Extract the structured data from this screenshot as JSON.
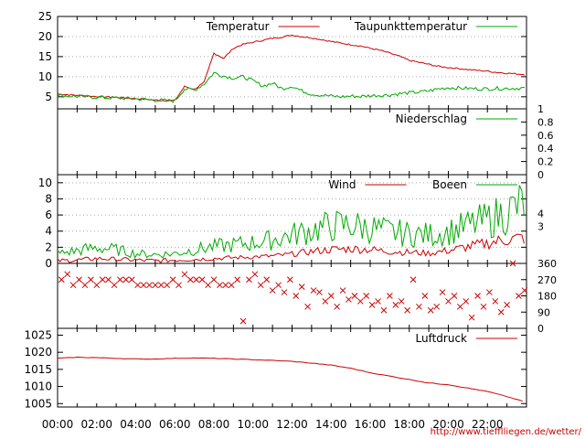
{
  "source_url": "http://www.tiefflliegen.de/wetter/",
  "colors": {
    "red": "#cc0000",
    "green": "#00aa00",
    "frame": "#000000",
    "grid": "#a8a8a8"
  },
  "time_ticks": [
    "00:00",
    "02:00",
    "04:00",
    "06:00",
    "08:00",
    "10:00",
    "12:00",
    "14:00",
    "16:00",
    "18:00",
    "20:00",
    "22:00"
  ],
  "chart_data": [
    {
      "type": "line",
      "panel": "temperature",
      "ylim": [
        2,
        25
      ],
      "yticks": [
        5,
        10,
        15,
        20,
        25
      ],
      "grid": true,
      "legend_position": "top",
      "x": [
        0,
        1,
        2,
        3,
        4,
        5,
        5.5,
        6,
        6.5,
        7,
        7.5,
        8,
        8.5,
        9,
        9.5,
        10,
        10.5,
        11,
        11.5,
        12,
        12.5,
        13,
        13.5,
        14,
        14.5,
        15,
        15.5,
        16,
        16.5,
        17,
        17.5,
        18,
        18.5,
        19,
        19.5,
        20,
        20.5,
        21,
        21.5,
        22,
        22.5,
        23,
        23.9
      ],
      "series": [
        {
          "name": "Temperatur",
          "color": "#cc0000",
          "values": [
            5.6,
            5.3,
            5.0,
            4.8,
            4.5,
            4.1,
            4.0,
            4.0,
            7.5,
            6.8,
            8.5,
            15.8,
            14.5,
            17.0,
            18.0,
            18.5,
            19.0,
            19.5,
            19.8,
            20.3,
            19.9,
            19.6,
            19.2,
            18.7,
            18.3,
            17.9,
            17.6,
            17.0,
            16.5,
            15.8,
            15.0,
            14.0,
            13.5,
            13.0,
            12.5,
            12.2,
            12.0,
            11.7,
            11.5,
            11.3,
            11.0,
            10.8,
            10.5
          ]
        },
        {
          "name": "Taupunkttemperatur",
          "color": "#00aa00",
          "values": [
            5.2,
            4.9,
            4.7,
            4.5,
            4.3,
            4.0,
            3.9,
            3.8,
            6.8,
            6.5,
            8.0,
            10.8,
            10.0,
            9.5,
            9.8,
            8.8,
            7.5,
            8.2,
            6.8,
            7.5,
            6.3,
            5.5,
            5.2,
            5.0,
            4.8,
            5.0,
            4.9,
            5.1,
            5.2,
            5.3,
            5.6,
            5.8,
            6.0,
            6.3,
            6.8,
            7.1,
            7.0,
            6.9,
            6.8,
            6.8,
            6.9,
            6.9,
            7.0
          ]
        }
      ]
    },
    {
      "type": "line",
      "panel": "precipitation",
      "ylim": [
        0,
        1
      ],
      "yticks": [
        0,
        0.2,
        0.4,
        0.6,
        0.8,
        1
      ],
      "legend_position": "top-right",
      "x": [
        0,
        23.9
      ],
      "series": [
        {
          "name": "Niederschlag",
          "color": "#00aa00",
          "values": [
            0,
            0
          ]
        }
      ]
    },
    {
      "type": "line",
      "panel": "wind",
      "ylim": [
        0,
        11
      ],
      "yticks": [
        0,
        2,
        4,
        6,
        8,
        10
      ],
      "y2ticks": [
        3,
        4
      ],
      "grid": true,
      "legend_position": "top",
      "x": [
        0,
        1,
        2,
        3,
        4,
        5,
        6,
        7,
        8,
        9,
        10,
        11,
        12,
        13,
        14,
        15,
        16,
        17,
        18,
        19,
        20,
        21,
        22,
        23,
        23.9
      ],
      "series": [
        {
          "name": "Wind",
          "color": "#cc0000",
          "values": [
            0.2,
            0.3,
            0.5,
            0.4,
            0.3,
            0.2,
            0.3,
            0.4,
            0.5,
            0.6,
            0.7,
            0.8,
            1.0,
            1.3,
            1.5,
            1.6,
            1.5,
            1.3,
            1.2,
            1.1,
            1.4,
            1.8,
            2.2,
            2.6,
            2.8
          ]
        },
        {
          "name": "Boeen",
          "color": "#00aa00",
          "values": [
            1.0,
            1.3,
            1.6,
            1.4,
            1.0,
            0.9,
            1.0,
            1.4,
            1.7,
            1.9,
            2.1,
            2.4,
            2.9,
            3.4,
            3.8,
            3.9,
            3.6,
            3.2,
            3.0,
            2.9,
            3.2,
            3.8,
            4.4,
            5.2,
            6.2
          ]
        }
      ]
    },
    {
      "type": "scatter",
      "panel": "wind_direction",
      "ylim": [
        0,
        360
      ],
      "yticks": [
        0,
        90,
        180,
        270,
        360
      ],
      "marker": "x",
      "color": "#cc0000",
      "x": [
        0.2,
        0.5,
        0.8,
        1.1,
        1.4,
        1.7,
        2.0,
        2.3,
        2.6,
        2.9,
        3.2,
        3.5,
        3.8,
        4.1,
        4.4,
        4.7,
        5.0,
        5.3,
        5.6,
        5.9,
        6.2,
        6.5,
        6.8,
        7.1,
        7.4,
        7.7,
        8.0,
        8.3,
        8.6,
        8.9,
        9.2,
        9.5,
        9.8,
        10.1,
        10.4,
        10.7,
        11.0,
        11.3,
        11.6,
        11.9,
        12.2,
        12.5,
        12.8,
        13.1,
        13.4,
        13.7,
        14.0,
        14.3,
        14.6,
        14.9,
        15.2,
        15.5,
        15.8,
        16.1,
        16.4,
        16.7,
        17.0,
        17.3,
        17.6,
        17.9,
        18.2,
        18.5,
        18.8,
        19.1,
        19.4,
        19.7,
        20.0,
        20.3,
        20.6,
        20.9,
        21.2,
        21.5,
        21.8,
        22.1,
        22.4,
        22.7,
        23.0,
        23.3,
        23.6,
        23.9
      ],
      "values": [
        270,
        300,
        240,
        270,
        240,
        270,
        240,
        270,
        270,
        240,
        270,
        270,
        270,
        240,
        240,
        240,
        240,
        240,
        240,
        270,
        240,
        300,
        270,
        270,
        270,
        240,
        270,
        240,
        240,
        240,
        270,
        40,
        270,
        300,
        240,
        270,
        210,
        240,
        200,
        270,
        180,
        230,
        120,
        210,
        200,
        150,
        180,
        120,
        210,
        160,
        180,
        150,
        180,
        130,
        150,
        100,
        180,
        130,
        150,
        100,
        270,
        120,
        180,
        100,
        120,
        200,
        150,
        180,
        120,
        150,
        60,
        180,
        120,
        200,
        150,
        90,
        130,
        360,
        180,
        210
      ]
    },
    {
      "type": "line",
      "panel": "pressure",
      "ylim": [
        1004,
        1027
      ],
      "yticks": [
        1005,
        1010,
        1015,
        1020,
        1025
      ],
      "legend_position": "top-right",
      "x": [
        0,
        1,
        2,
        3,
        4,
        5,
        6,
        7,
        8,
        9,
        10,
        11,
        12,
        13,
        14,
        15,
        16,
        17,
        18,
        19,
        20,
        21,
        22,
        23,
        23.9
      ],
      "series": [
        {
          "name": "Luftdruck",
          "color": "#cc0000",
          "values": [
            1018.2,
            1018.5,
            1018.4,
            1018.2,
            1018.0,
            1018.0,
            1018.2,
            1018.3,
            1018.2,
            1018.0,
            1017.8,
            1017.6,
            1017.3,
            1016.8,
            1016.2,
            1015.3,
            1014.0,
            1013.0,
            1012.0,
            1011.0,
            1010.5,
            1009.5,
            1008.5,
            1007.0,
            1005.5
          ]
        }
      ]
    }
  ]
}
